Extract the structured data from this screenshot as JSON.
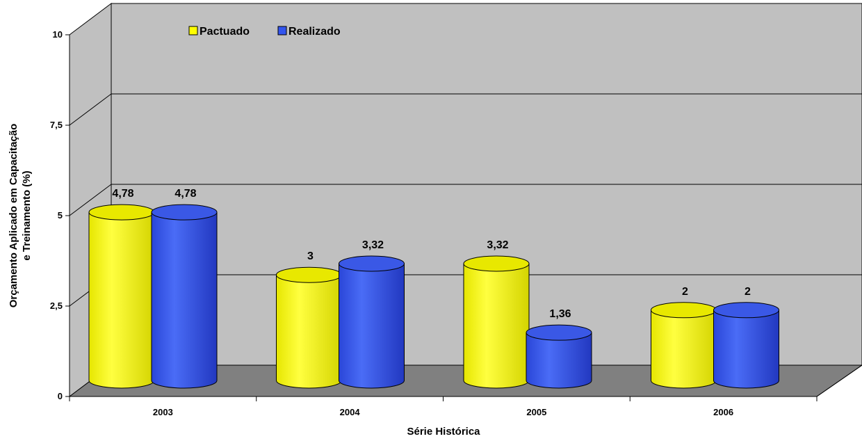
{
  "chart_data": {
    "type": "bar",
    "variant": "3d-cylinder",
    "title": "",
    "xlabel": "Série Histórica",
    "ylabel": [
      "Orçamento Aplicado em Capacitação",
      "e Treinamento (%)"
    ],
    "categories": [
      "2003",
      "2004",
      "2005",
      "2006"
    ],
    "series": [
      {
        "name": "Pactuado",
        "values": [
          4.78,
          3,
          3.32,
          2
        ],
        "labels": [
          "4,78",
          "3",
          "3,32",
          "2"
        ],
        "color": "#ffff00"
      },
      {
        "name": "Realizado",
        "values": [
          4.78,
          3.32,
          1.36,
          2
        ],
        "labels": [
          "4,78",
          "3,32",
          "1,36",
          "2"
        ],
        "color": "#3355ee"
      }
    ],
    "ylim": [
      0,
      10
    ],
    "yticks": [
      0,
      2.5,
      5,
      7.5,
      10
    ],
    "ytick_labels": [
      "0",
      "2,5",
      "5",
      "7,5",
      "10"
    ],
    "grid": true,
    "legend": "top-left",
    "colors": {
      "wall": "#c0c0c0",
      "floor": "#808080",
      "grid": "#000000"
    }
  }
}
